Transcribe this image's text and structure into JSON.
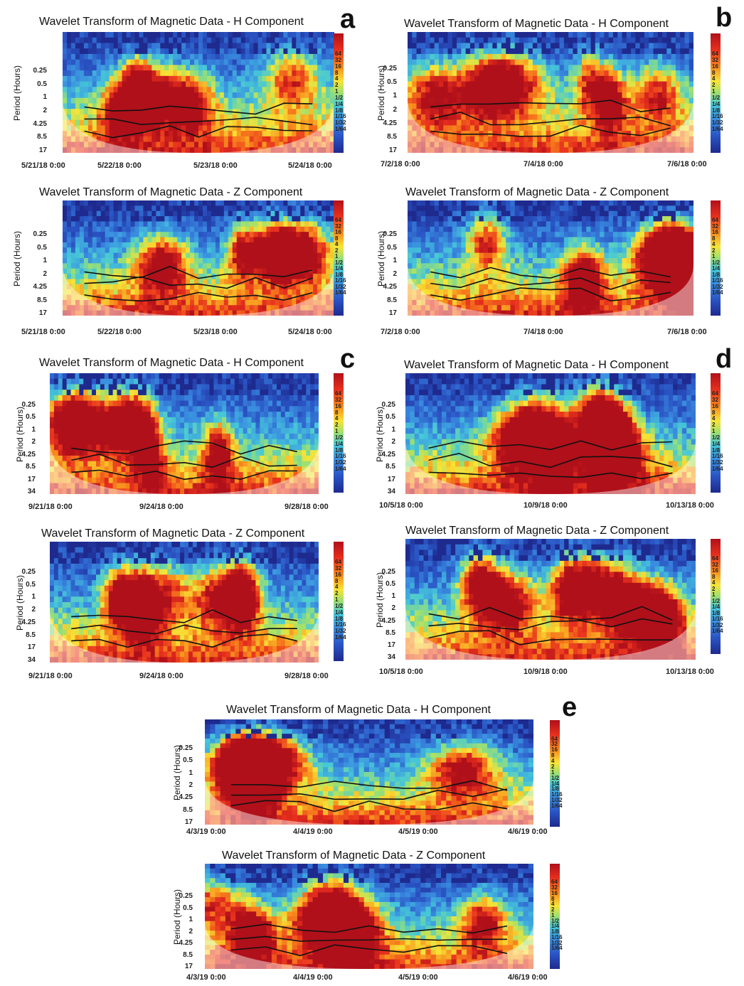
{
  "chart_data": [
    {
      "type": "heatmap",
      "panel": "a",
      "title": "Wavelet Transform of Magnetic Data - H Component",
      "ylabel": "Period (Hours)",
      "yticks": [
        "0.25",
        "0.5",
        "1",
        "2",
        "4.25",
        "8.5",
        "17"
      ],
      "xticks": [
        "5/21/18 0:00",
        "5/22/18 0:00",
        "5/23/18 0:00",
        "5/24/18 0:00"
      ],
      "colorbar": [
        "64",
        "32",
        "16",
        "8",
        "4",
        "2",
        "1",
        "1/2",
        "1/4",
        "1/8",
        "1/16",
        "1/32",
        "1/64"
      ],
      "seed": 11
    },
    {
      "type": "heatmap",
      "panel": "a",
      "title": "Wavelet Transform of Magnetic Data - Z Component",
      "ylabel": "Period (Hours)",
      "yticks": [
        "0.25",
        "0.5",
        "1",
        "2",
        "4.25",
        "8.5",
        "17"
      ],
      "xticks": [
        "5/21/18 0:00",
        "5/22/18 0:00",
        "5/23/18 0:00",
        "5/24/18 0:00"
      ],
      "colorbar": [
        "64",
        "32",
        "16",
        "8",
        "4",
        "2",
        "1",
        "1/2",
        "1/4",
        "1/8",
        "1/16",
        "1/32",
        "1/64"
      ],
      "seed": 23
    },
    {
      "type": "heatmap",
      "panel": "b",
      "title": "Wavelet Transform of Magnetic Data - H Component",
      "ylabel": "Period (Hours)",
      "yticks": [
        "0.25",
        "0.5",
        "1",
        "2",
        "4.25",
        "8.5",
        "17"
      ],
      "xticks": [
        "7/2/18 0:00",
        "7/4/18 0:00",
        "7/6/18 0:00"
      ],
      "colorbar": [
        "64",
        "32",
        "16",
        "8",
        "4",
        "2",
        "1",
        "1/2",
        "1/4",
        "1/8",
        "1/16",
        "1/32",
        "1/64"
      ],
      "seed": 37
    },
    {
      "type": "heatmap",
      "panel": "b",
      "title": "Wavelet Transform of Magnetic Data - Z Component",
      "ylabel": "Period (Hours)",
      "yticks": [
        "0.25",
        "0.5",
        "1",
        "2",
        "4.25",
        "8.5",
        "17"
      ],
      "xticks": [
        "7/2/18 0:00",
        "7/4/18 0:00",
        "7/6/18 0:00"
      ],
      "colorbar": [
        "64",
        "32",
        "16",
        "8",
        "4",
        "2",
        "1",
        "1/2",
        "1/4",
        "1/8",
        "1/16",
        "1/32",
        "1/64"
      ],
      "seed": 41
    },
    {
      "type": "heatmap",
      "panel": "c",
      "title": "Wavelet Transform of Magnetic Data - H Component",
      "ylabel": "Period (Hours)",
      "yticks": [
        "0.25",
        "0.5",
        "1",
        "2",
        "4.25",
        "8.5",
        "17",
        "34"
      ],
      "xticks": [
        "9/21/18 0:00",
        "9/24/18 0:00",
        "9/28/18 0:00"
      ],
      "colorbar": [
        "64",
        "32",
        "16",
        "8",
        "4",
        "2",
        "1",
        "1/2",
        "1/4",
        "1/8",
        "1/16",
        "1/32",
        "1/64"
      ],
      "seed": 53
    },
    {
      "type": "heatmap",
      "panel": "c",
      "title": "Wavelet Transform of Magnetic Data - Z Component",
      "ylabel": "Period (Hours)",
      "yticks": [
        "0.25",
        "0.5",
        "1",
        "2",
        "4.25",
        "8.5",
        "17",
        "34"
      ],
      "xticks": [
        "9/21/18 0:00",
        "9/24/18 0:00",
        "9/28/18 0:00"
      ],
      "colorbar": [
        "64",
        "32",
        "16",
        "8",
        "4",
        "2",
        "1",
        "1/2",
        "1/4",
        "1/8",
        "1/16",
        "1/32",
        "1/64"
      ],
      "seed": 67
    },
    {
      "type": "heatmap",
      "panel": "d",
      "title": "Wavelet Transform of Magnetic Data - H Component",
      "ylabel": "Period (Hours)",
      "yticks": [
        "0.25",
        "0.5",
        "1",
        "2",
        "4.25",
        "8.5",
        "17",
        "34"
      ],
      "xticks": [
        "10/5/18 0:00",
        "10/9/18 0:00",
        "10/13/18 0:00"
      ],
      "colorbar": [
        "64",
        "32",
        "16",
        "8",
        "4",
        "2",
        "1",
        "1/2",
        "1/4",
        "1/8",
        "1/16",
        "1/32",
        "1/64"
      ],
      "seed": 71
    },
    {
      "type": "heatmap",
      "panel": "d",
      "title": "Wavelet Transform of Magnetic Data - Z Component",
      "ylabel": "Period (Hours)",
      "yticks": [
        "0.25",
        "0.5",
        "1",
        "2",
        "4.25",
        "8.5",
        "17",
        "34"
      ],
      "xticks": [
        "10/5/18 0:00",
        "10/9/18 0:00",
        "10/13/18 0:00"
      ],
      "colorbar": [
        "64",
        "32",
        "16",
        "8",
        "4",
        "2",
        "1",
        "1/2",
        "1/4",
        "1/8",
        "1/16",
        "1/32",
        "1/64"
      ],
      "seed": 83
    },
    {
      "type": "heatmap",
      "panel": "e",
      "title": "Wavelet Transform of Magnetic Data - H Component",
      "ylabel": "Period (Hours)",
      "yticks": [
        "0.25",
        "0.5",
        "1",
        "2",
        "4.25",
        "8.5",
        "17"
      ],
      "xticks": [
        "4/3/19 0:00",
        "4/4/19 0:00",
        "4/5/19 0:00",
        "4/6/19 0:00"
      ],
      "colorbar": [
        "64",
        "32",
        "16",
        "8",
        "4",
        "2",
        "1",
        "1/2",
        "1/4",
        "1/8",
        "1/16",
        "1/32",
        "1/64"
      ],
      "seed": 97
    },
    {
      "type": "heatmap",
      "panel": "e",
      "title": "Wavelet Transform of Magnetic Data - Z Component",
      "ylabel": "Period (Hours)",
      "yticks": [
        "0.25",
        "0.5",
        "1",
        "2",
        "4.25",
        "8.5",
        "17"
      ],
      "xticks": [
        "4/3/19 0:00",
        "4/4/19 0:00",
        "4/5/19 0:00",
        "4/6/19 0:00"
      ],
      "colorbar": [
        "64",
        "32",
        "16",
        "8",
        "4",
        "2",
        "1",
        "1/2",
        "1/4",
        "1/8",
        "1/16",
        "1/32",
        "1/64"
      ],
      "seed": 101
    }
  ],
  "panel_letters": [
    "a",
    "b",
    "c",
    "d",
    "e"
  ]
}
